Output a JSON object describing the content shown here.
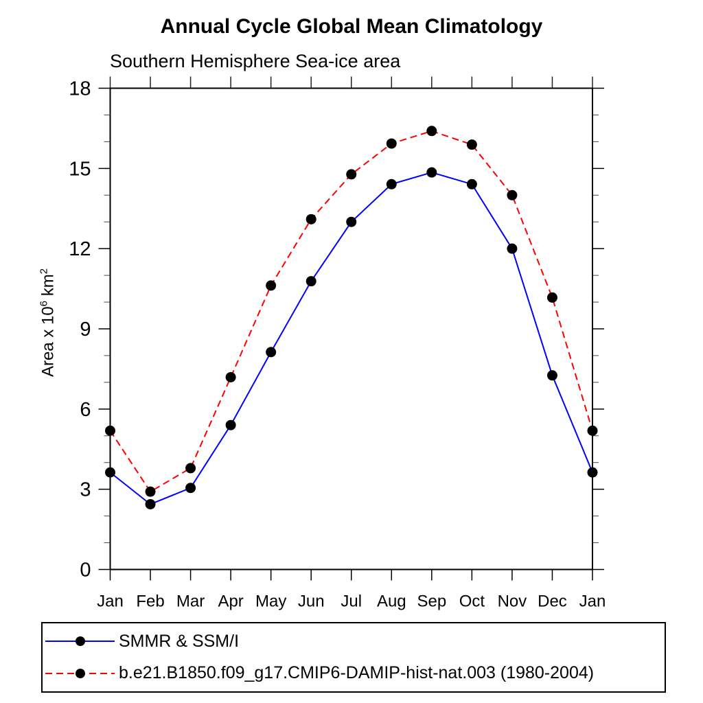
{
  "chart_data": {
    "type": "line",
    "title": "Annual Cycle Global Mean Climatology",
    "subtitle": "Southern Hemisphere Sea-ice area",
    "x_tick_labels": [
      "Jan",
      "Feb",
      "Mar",
      "Apr",
      "May",
      "Jun",
      "Jul",
      "Aug",
      "Sep",
      "Oct",
      "Nov",
      "Dec",
      "Jan"
    ],
    "y_ticks": [
      0,
      3,
      6,
      9,
      12,
      15,
      18
    ],
    "y_minor_step": 1,
    "ylim": [
      0,
      18
    ],
    "xlabel": "",
    "ylabel": {
      "text": "Area x 10⁶ km²",
      "prefix": "Area x 10",
      "sup1": "6",
      "mid": " km",
      "sup2": "2"
    },
    "grid": "off",
    "frame": "box-with-outward-ticks",
    "legend_position": "bottom-left-boxed",
    "marker": "filled-circle",
    "marker_color": "#000000",
    "series": [
      {
        "name": "SMMR & SSM/I",
        "color": "#0000ff",
        "style": "solid",
        "values": [
          3.63,
          2.44,
          3.05,
          5.4,
          8.13,
          10.78,
          13.0,
          14.41,
          14.85,
          14.41,
          12.0,
          7.26,
          3.63
        ]
      },
      {
        "name": "b.e21.B1850.f09_g17.CMIP6-DAMIP-hist-nat.003 (1980-2004)",
        "color": "#ff0000",
        "style": "dashed",
        "values": [
          5.19,
          2.91,
          3.79,
          7.19,
          10.62,
          13.1,
          14.78,
          15.93,
          16.4,
          15.89,
          14.0,
          10.17,
          5.19
        ]
      }
    ]
  }
}
